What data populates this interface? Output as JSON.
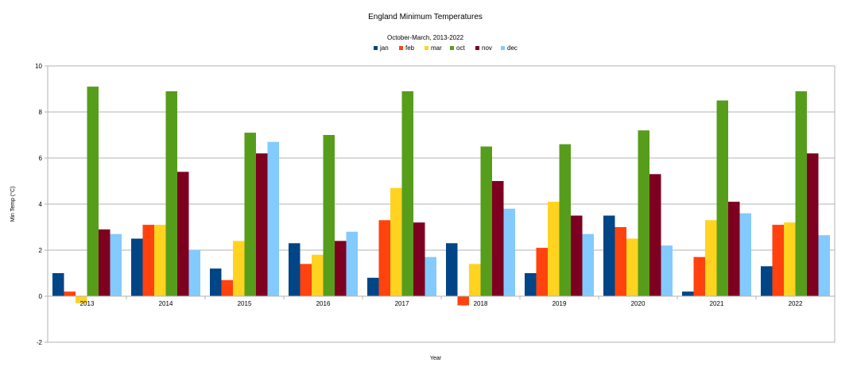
{
  "chart_data": {
    "type": "bar",
    "title": "England Minimum Temperatures",
    "subtitle": "October-March, 2013-2022",
    "xlabel": "Year",
    "ylabel": "Min Temp (°C)",
    "ylim": [
      -2,
      10
    ],
    "yticks": [
      -2,
      0,
      2,
      4,
      6,
      8,
      10
    ],
    "grid": true,
    "legend_position": "top-center",
    "categories": [
      "2013",
      "2014",
      "2015",
      "2016",
      "2017",
      "2018",
      "2019",
      "2020",
      "2021",
      "2022"
    ],
    "series": [
      {
        "name": "jan",
        "color": "#004586",
        "values": [
          1.0,
          2.5,
          1.2,
          2.3,
          0.8,
          2.3,
          1.0,
          3.5,
          0.2,
          1.3
        ]
      },
      {
        "name": "feb",
        "color": "#ff420e",
        "values": [
          0.2,
          3.1,
          0.7,
          1.4,
          3.3,
          -0.4,
          2.1,
          3.0,
          1.7,
          3.1
        ]
      },
      {
        "name": "mar",
        "color": "#ffd320",
        "values": [
          -0.3,
          3.1,
          2.4,
          1.8,
          4.7,
          1.4,
          4.1,
          2.5,
          3.3,
          3.2
        ]
      },
      {
        "name": "oct",
        "color": "#579d1c",
        "values": [
          9.1,
          8.9,
          7.1,
          7.0,
          8.9,
          6.5,
          6.6,
          7.2,
          8.5,
          8.9
        ]
      },
      {
        "name": "nov",
        "color": "#7e0021",
        "values": [
          2.9,
          5.4,
          6.2,
          2.4,
          3.2,
          5.0,
          3.5,
          5.3,
          4.1,
          6.2
        ]
      },
      {
        "name": "dec",
        "color": "#83caff",
        "values": [
          2.7,
          2.0,
          6.7,
          2.8,
          1.7,
          3.8,
          2.7,
          2.2,
          3.6,
          2.65
        ]
      }
    ]
  }
}
